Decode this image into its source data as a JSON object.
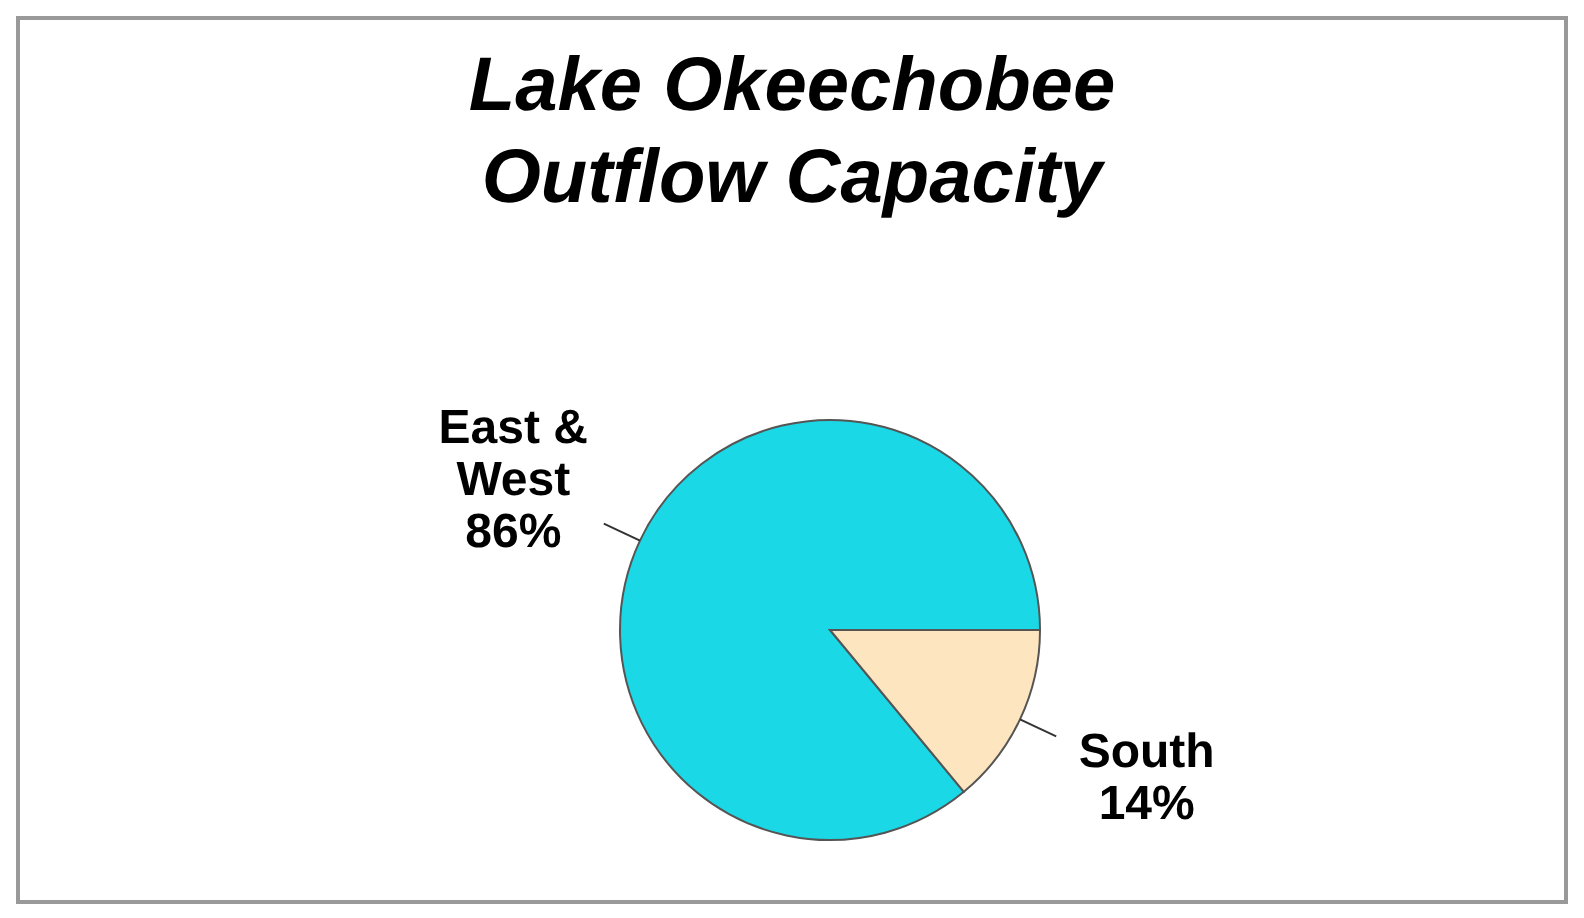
{
  "chart_data": {
    "type": "pie",
    "title": "Lake Okeechobee Outflow Capacity",
    "categories": [
      "East & West",
      "South"
    ],
    "values": [
      86,
      14
    ],
    "colors": [
      "#1ad8e6",
      "#fde6bf"
    ],
    "value_labels": [
      "86%",
      "14%"
    ],
    "legend": false
  }
}
